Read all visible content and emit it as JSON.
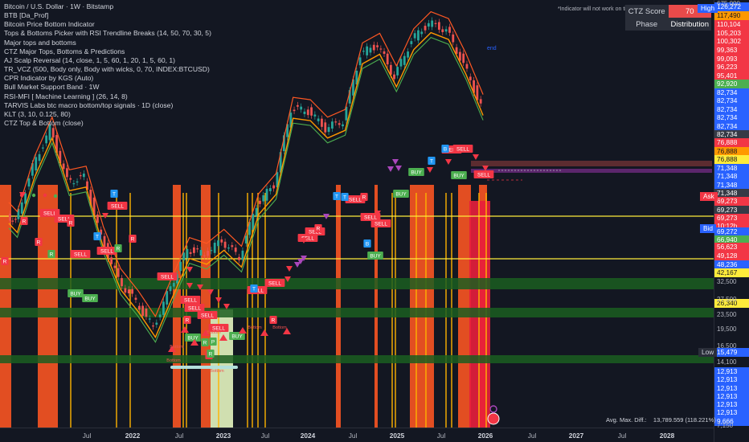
{
  "symbol": {
    "title": "Bitcoin / U.S. Dollar · 1W · Bitstamp"
  },
  "indicators": [
    "BTB [Da_Prof]",
    "Bitcoin Price Bottom Indicator",
    "Tops & Bottoms Picker with RSI Trendline Breaks (14, 50, 70, 30, 5)",
    "Major tops and bottoms",
    "CTZ Major Tops, Bottoms & Predictions",
    "AJ Scalp Reversal (14, close, 1, 5, 60, 1, 20, 1, 5, 60, 1)",
    "TR_VCZ (500, Body only, Body with wicks, 0, 70, INDEX:BTCUSD)",
    "CPR Indicator by KGS (Auto)",
    "Bull Market Support Band · 1W",
    "RSI-MFI [ Machine Learning ] (26, 14, 8)",
    "TARVIS Labs btc macro bottom/top signals · 1D (close)",
    "KLT (3, 10, 0.125, 80)",
    "CTZ Top & Bottom (close)"
  ],
  "note": "*Indicator will not work on timeframes under 4 h or weekly",
  "ctz_table": {
    "score_label": "CTZ Score",
    "score_value": "70",
    "phase_label": "Phase",
    "phase_value": "Distribution"
  },
  "end_label": "end",
  "signals": {
    "sell": "SELL",
    "buy": "BUY",
    "r": "R",
    "t": "T",
    "b": "B",
    "p": "P",
    "bottom": "Bottom"
  },
  "price_axis": {
    "labels": [
      {
        "text": "126,272",
        "bg": "#2962ff"
      },
      {
        "text": "117,490",
        "bg": "#ff9800"
      },
      {
        "text": "110,104",
        "bg": "#f23645"
      },
      {
        "text": "105,203",
        "bg": "#f23645"
      },
      {
        "text": "100,302",
        "bg": "#f23645"
      },
      {
        "text": "99,363",
        "bg": "#f23645"
      },
      {
        "text": "99,093",
        "bg": "#f23645"
      },
      {
        "text": "96,223",
        "bg": "#f23645"
      },
      {
        "text": "95,401",
        "bg": "#f23645"
      },
      {
        "text": "92,920",
        "bg": "#4caf50"
      },
      {
        "text": "82,734",
        "bg": "#2962ff"
      },
      {
        "text": "82,734",
        "bg": "#2962ff"
      },
      {
        "text": "82,734",
        "bg": "#2962ff"
      },
      {
        "text": "82,734",
        "bg": "#2962ff"
      },
      {
        "text": "82,734",
        "bg": "#2962ff"
      },
      {
        "text": "82,734",
        "bg": "#363a45"
      },
      {
        "text": "76,888",
        "bg": "#f23645"
      },
      {
        "text": "76,888",
        "bg": "#ff9800"
      },
      {
        "text": "76,888",
        "bg": "#ffeb3b"
      },
      {
        "text": "71,348",
        "bg": "#2962ff"
      },
      {
        "text": "71,348",
        "bg": "#2962ff"
      },
      {
        "text": "71,348",
        "bg": "#2962ff"
      },
      {
        "text": "71,348",
        "bg": "#363a45"
      },
      {
        "text": "69,273",
        "bg": "#f23645"
      },
      {
        "text": "69,273",
        "bg": "#363a45"
      },
      {
        "text": "69,273",
        "bg": "#f23645"
      },
      {
        "text": "10:12h",
        "bg": "#f23645"
      },
      {
        "text": "69,272",
        "bg": "#2962ff"
      },
      {
        "text": "66,940",
        "bg": "#4caf50"
      },
      {
        "text": "56,623",
        "bg": "#f23645"
      },
      {
        "text": "49,128",
        "bg": "#f23645"
      },
      {
        "text": "48,236",
        "bg": "#2962ff"
      },
      {
        "text": "42,167",
        "bg": "#ffeb3b"
      },
      {
        "text": "26,340",
        "bg": "#ffeb3b"
      },
      {
        "text": "12,913",
        "bg": "#2962ff"
      },
      {
        "text": "12,913",
        "bg": "#2962ff"
      },
      {
        "text": "12,913",
        "bg": "#2962ff"
      },
      {
        "text": "12,913",
        "bg": "#2962ff"
      },
      {
        "text": "12,913",
        "bg": "#2962ff"
      },
      {
        "text": "12,913",
        "bg": "#2962ff"
      },
      {
        "text": "9,666",
        "bg": "#2962ff"
      }
    ],
    "ticks": [
      "675,000",
      "32,500",
      "27,500",
      "23,500",
      "19,500",
      "16,500",
      "14,100",
      "7,150"
    ],
    "high_tag": "High",
    "ask_tag": "Ask",
    "bid_tag": "Bid",
    "low_tag": "Low",
    "low_value": "15,479"
  },
  "time_axis": {
    "ticks": [
      {
        "text": "Jul",
        "year": false
      },
      {
        "text": "2022",
        "year": true
      },
      {
        "text": "Jul",
        "year": false
      },
      {
        "text": "2023",
        "year": true
      },
      {
        "text": "Jul",
        "year": false
      },
      {
        "text": "2024",
        "year": true
      },
      {
        "text": "Jul",
        "year": false
      },
      {
        "text": "2025",
        "year": true
      },
      {
        "text": "Jul",
        "year": false
      },
      {
        "text": "2026",
        "year": true
      },
      {
        "text": "Jul",
        "year": false
      },
      {
        "text": "2027",
        "year": true
      },
      {
        "text": "Jul",
        "year": false
      },
      {
        "text": "2028",
        "year": true
      }
    ]
  },
  "avg_max_diff": {
    "label": "Avg. Max. Diff.:",
    "value": "13,789.559 (118.221%)"
  },
  "colors": {
    "background": "#131722",
    "up": "#26a69a",
    "down": "#ef5350",
    "sell": "#f23645",
    "buy": "#4caf50",
    "orange_bar": "#ff5722",
    "red_zone": "#e91e3c",
    "yellow_line": "#ffeb3b",
    "green_band": "#1b5e20",
    "light_green": "#e6f5c0"
  },
  "chart_data": {
    "type": "candlestick",
    "title": "Bitcoin / U.S. Dollar · 1W · Bitstamp",
    "y_scale": "log",
    "x": [
      "2021-06",
      "2021-07",
      "2021-09",
      "2021-11",
      "2022-01",
      "2022-03",
      "2022-05",
      "2022-07",
      "2022-09",
      "2022-11",
      "2023-01",
      "2023-03",
      "2023-05",
      "2023-07",
      "2023-09",
      "2023-11",
      "2024-01",
      "2024-03",
      "2024-05",
      "2024-07",
      "2024-09",
      "2024-11",
      "2025-01",
      "2025-03",
      "2025-05",
      "2025-07",
      "2025-09",
      "2025-11",
      "2026-01"
    ],
    "series": [
      {
        "values": [
          35000,
          33000,
          47000,
          60000,
          43000,
          44000,
          30000,
          23000,
          20000,
          17000,
          22000,
          28000,
          27000,
          29500,
          26500,
          37000,
          42000,
          68000,
          67000,
          60000,
          63000,
          96000,
          102000,
          83000,
          105000,
          117000,
          112000,
          90000,
          69273
        ]
      }
    ]
  }
}
